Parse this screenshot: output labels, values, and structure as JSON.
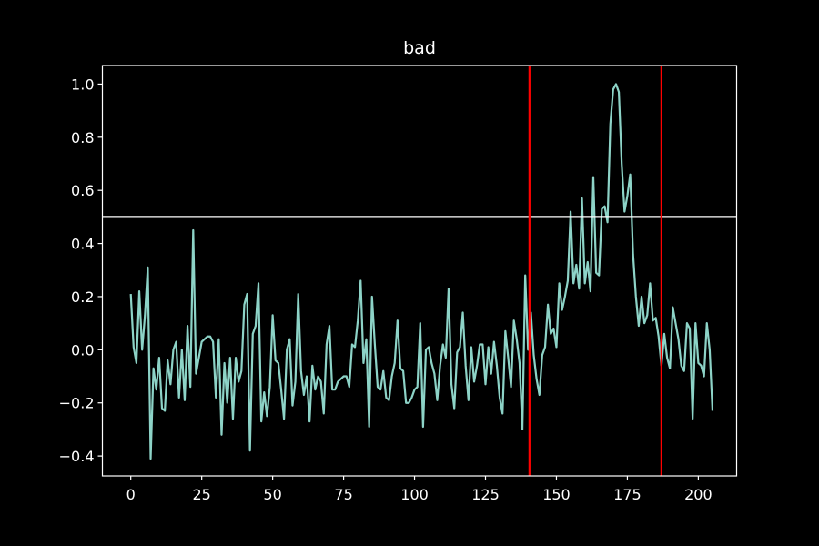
{
  "chart_data": {
    "type": "line",
    "title": "bad",
    "xlabel": "",
    "ylabel": "",
    "xlim": [
      -10,
      213.5
    ],
    "ylim": [
      -0.475,
      1.07
    ],
    "x_ticks": [
      0,
      25,
      50,
      75,
      100,
      125,
      150,
      175,
      200
    ],
    "y_ticks": [
      -0.4,
      -0.2,
      0.0,
      0.2,
      0.4,
      0.6,
      0.8,
      1.0
    ],
    "x_tick_labels": [
      "0",
      "25",
      "50",
      "75",
      "100",
      "125",
      "150",
      "175",
      "200"
    ],
    "y_tick_labels": [
      "−0.4",
      "−0.2",
      "0.0",
      "0.2",
      "0.4",
      "0.6",
      "0.8",
      "1.0"
    ],
    "grid": false,
    "background_color": "#000000",
    "axes_color": "#ffffff",
    "series": [
      {
        "color": "#8dd3c7",
        "x_start": 0,
        "x_step": 1,
        "values": [
          0.21,
          0.01,
          -0.05,
          0.22,
          0.0,
          0.13,
          0.31,
          -0.41,
          -0.07,
          -0.15,
          -0.03,
          -0.22,
          -0.23,
          -0.04,
          -0.13,
          0.0,
          0.03,
          -0.18,
          0.0,
          -0.19,
          0.09,
          -0.14,
          0.45,
          -0.09,
          -0.03,
          0.03,
          0.04,
          0.05,
          0.05,
          0.03,
          -0.18,
          0.04,
          -0.32,
          -0.05,
          -0.2,
          -0.03,
          -0.26,
          -0.03,
          -0.12,
          -0.08,
          0.17,
          0.21,
          -0.38,
          0.06,
          0.09,
          0.25,
          -0.27,
          -0.16,
          -0.25,
          -0.14,
          0.13,
          -0.04,
          -0.05,
          -0.15,
          -0.26,
          0.0,
          0.04,
          -0.21,
          -0.12,
          0.21,
          -0.08,
          -0.17,
          -0.1,
          -0.27,
          -0.06,
          -0.15,
          -0.1,
          -0.12,
          -0.24,
          0.02,
          0.09,
          -0.15,
          -0.15,
          -0.12,
          -0.11,
          -0.1,
          -0.1,
          -0.14,
          0.02,
          0.01,
          0.11,
          0.26,
          -0.05,
          0.04,
          -0.29,
          0.2,
          0.02,
          -0.14,
          -0.15,
          -0.08,
          -0.18,
          -0.19,
          -0.1,
          -0.05,
          0.11,
          -0.07,
          -0.08,
          -0.2,
          -0.2,
          -0.18,
          -0.15,
          -0.14,
          0.1,
          -0.29,
          0.0,
          0.01,
          -0.05,
          -0.09,
          -0.19,
          -0.06,
          0.02,
          -0.03,
          0.23,
          -0.13,
          -0.22,
          -0.01,
          0.01,
          0.14,
          -0.06,
          -0.19,
          0.01,
          -0.12,
          -0.06,
          0.02,
          0.02,
          -0.13,
          0.01,
          -0.09,
          0.03,
          -0.06,
          -0.18,
          -0.24,
          0.07,
          -0.03,
          -0.14,
          0.11,
          0.04,
          -0.05,
          -0.3,
          0.28,
          0.0,
          0.14,
          -0.02,
          -0.11,
          -0.17,
          -0.02,
          0.01,
          0.17,
          0.06,
          0.08,
          0.01,
          0.25,
          0.15,
          0.2,
          0.26,
          0.52,
          0.25,
          0.32,
          0.23,
          0.57,
          0.25,
          0.33,
          0.22,
          0.65,
          0.29,
          0.28,
          0.53,
          0.54,
          0.48,
          0.85,
          0.98,
          1.0,
          0.97,
          0.7,
          0.52,
          0.58,
          0.66,
          0.36,
          0.2,
          0.09,
          0.2,
          0.1,
          0.13,
          0.25,
          0.11,
          0.12,
          0.05,
          -0.06,
          0.06,
          -0.03,
          -0.07,
          0.16,
          0.1,
          0.04,
          -0.06,
          -0.08,
          0.1,
          0.08,
          -0.26,
          0.1,
          -0.05,
          -0.06,
          -0.1,
          0.1,
          0.0,
          -0.23
        ]
      }
    ],
    "reference_lines": [
      {
        "orientation": "horizontal",
        "value": 0.5,
        "color": "#ffffff"
      },
      {
        "orientation": "vertical",
        "value": 140.5,
        "color": "#ff0000"
      },
      {
        "orientation": "vertical",
        "value": 187,
        "color": "#ff0000"
      }
    ]
  }
}
